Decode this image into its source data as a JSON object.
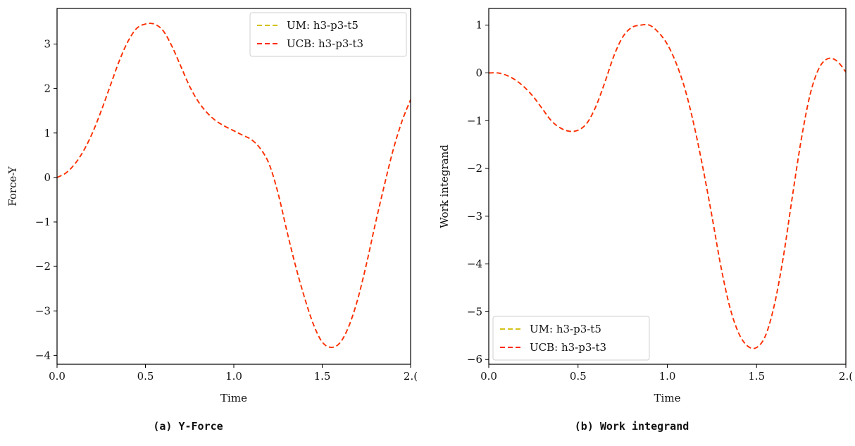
{
  "captions": [
    "(a) Y-Force",
    "(b) Work integrand"
  ],
  "colors": {
    "um": "#d4c21a",
    "ucb": "#ff2a0a"
  },
  "chart_data": [
    {
      "type": "line",
      "title": "",
      "xlabel": "Time",
      "ylabel": "Force-Y",
      "xlim": [
        0.0,
        2.0
      ],
      "ylim": [
        -4.2,
        3.8
      ],
      "xticks": [
        0.0,
        0.5,
        1.0,
        1.5,
        2.0
      ],
      "xtick_labels": [
        "0.0",
        "0.5",
        "1.0",
        "1.5",
        "2.("
      ],
      "yticks": [
        -4,
        -3,
        -2,
        -1,
        0,
        1,
        2,
        3
      ],
      "ytick_labels": [
        "−4",
        "−3",
        "−2",
        "−1",
        "0",
        "1",
        "2",
        "3"
      ],
      "legend_position": "top-right",
      "grid": false,
      "x": [
        0.0,
        0.05,
        0.1,
        0.15,
        0.2,
        0.25,
        0.3,
        0.35,
        0.4,
        0.45,
        0.5,
        0.55,
        0.6,
        0.65,
        0.7,
        0.75,
        0.8,
        0.85,
        0.9,
        0.95,
        1.0,
        1.05,
        1.1,
        1.15,
        1.2,
        1.25,
        1.3,
        1.35,
        1.4,
        1.45,
        1.5,
        1.55,
        1.6,
        1.65,
        1.7,
        1.75,
        1.8,
        1.85,
        1.9,
        1.95,
        2.0
      ],
      "series": [
        {
          "name": "UM: h3-p3-t5",
          "style": "dashed",
          "values": [
            0.0,
            0.1,
            0.3,
            0.6,
            1.0,
            1.5,
            2.05,
            2.6,
            3.05,
            3.35,
            3.45,
            3.45,
            3.3,
            2.95,
            2.5,
            2.05,
            1.7,
            1.45,
            1.27,
            1.15,
            1.05,
            0.95,
            0.85,
            0.65,
            0.3,
            -0.35,
            -1.2,
            -2.0,
            -2.7,
            -3.3,
            -3.7,
            -3.82,
            -3.72,
            -3.35,
            -2.75,
            -1.95,
            -1.05,
            -0.2,
            0.6,
            1.25,
            1.75
          ]
        },
        {
          "name": "UCB: h3-p3-t3",
          "style": "dashed",
          "values": [
            0.0,
            0.1,
            0.3,
            0.6,
            1.0,
            1.5,
            2.05,
            2.6,
            3.05,
            3.35,
            3.45,
            3.45,
            3.3,
            2.95,
            2.5,
            2.05,
            1.7,
            1.45,
            1.27,
            1.15,
            1.05,
            0.95,
            0.85,
            0.65,
            0.3,
            -0.35,
            -1.2,
            -2.0,
            -2.7,
            -3.3,
            -3.7,
            -3.82,
            -3.72,
            -3.35,
            -2.75,
            -1.95,
            -1.05,
            -0.2,
            0.6,
            1.25,
            1.75
          ]
        }
      ]
    },
    {
      "type": "line",
      "title": "",
      "xlabel": "Time",
      "ylabel": "Work integrand",
      "xlim": [
        0.0,
        2.0
      ],
      "ylim": [
        -6.1,
        1.35
      ],
      "xticks": [
        0.0,
        0.5,
        1.0,
        1.5,
        2.0
      ],
      "xtick_labels": [
        "0.0",
        "0.5",
        "1.0",
        "1.5",
        "2.("
      ],
      "yticks": [
        -6,
        -5,
        -4,
        -3,
        -2,
        -1,
        0,
        1
      ],
      "ytick_labels": [
        "−6",
        "−5",
        "−4",
        "−3",
        "−2",
        "−1",
        "0",
        "1"
      ],
      "legend_position": "bottom-left",
      "grid": false,
      "x": [
        0.0,
        0.05,
        0.1,
        0.15,
        0.2,
        0.25,
        0.3,
        0.35,
        0.4,
        0.45,
        0.5,
        0.55,
        0.6,
        0.65,
        0.7,
        0.75,
        0.8,
        0.85,
        0.9,
        0.95,
        1.0,
        1.05,
        1.1,
        1.15,
        1.2,
        1.25,
        1.3,
        1.35,
        1.4,
        1.45,
        1.5,
        1.55,
        1.6,
        1.65,
        1.7,
        1.75,
        1.8,
        1.85,
        1.9,
        1.95,
        2.0
      ],
      "series": [
        {
          "name": "UM: h3-p3-t5",
          "style": "dashed",
          "values": [
            0.0,
            0.0,
            -0.05,
            -0.15,
            -0.3,
            -0.5,
            -0.75,
            -1.0,
            -1.15,
            -1.22,
            -1.2,
            -1.05,
            -0.7,
            -0.2,
            0.35,
            0.75,
            0.95,
            1.0,
            1.0,
            0.85,
            0.6,
            0.2,
            -0.35,
            -1.1,
            -2.0,
            -3.0,
            -4.05,
            -4.9,
            -5.45,
            -5.72,
            -5.75,
            -5.5,
            -4.85,
            -3.85,
            -2.6,
            -1.4,
            -0.45,
            0.1,
            0.3,
            0.25,
            0.02
          ]
        },
        {
          "name": "UCB: h3-p3-t3",
          "style": "dashed",
          "values": [
            0.0,
            0.0,
            -0.05,
            -0.15,
            -0.3,
            -0.5,
            -0.75,
            -1.0,
            -1.15,
            -1.22,
            -1.2,
            -1.05,
            -0.7,
            -0.2,
            0.35,
            0.75,
            0.95,
            1.0,
            1.0,
            0.85,
            0.6,
            0.2,
            -0.35,
            -1.1,
            -2.0,
            -3.0,
            -4.05,
            -4.9,
            -5.45,
            -5.72,
            -5.75,
            -5.5,
            -4.85,
            -3.85,
            -2.6,
            -1.4,
            -0.45,
            0.1,
            0.3,
            0.25,
            0.02
          ]
        }
      ]
    }
  ]
}
